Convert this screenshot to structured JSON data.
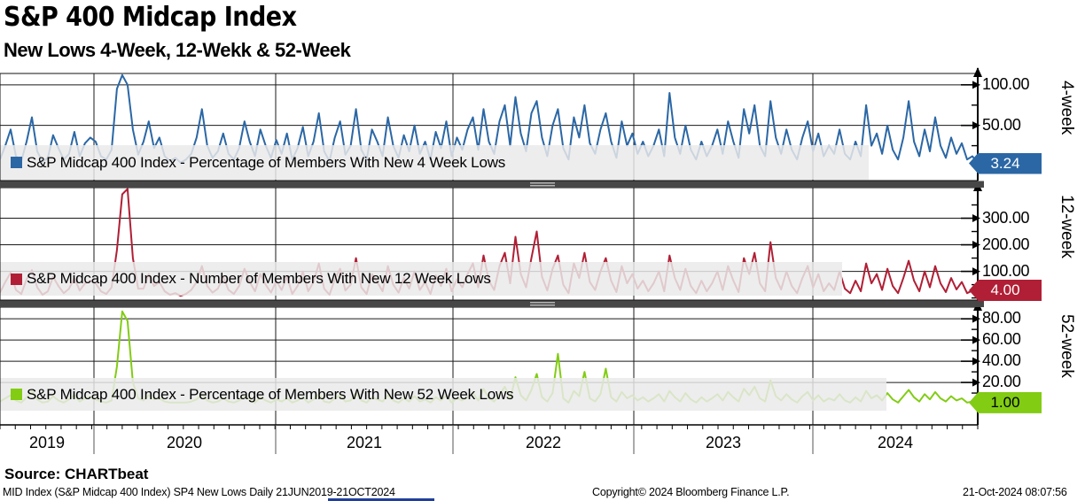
{
  "header": {
    "title": "S&P 400 Midcap Index",
    "subtitle": "New Lows 4-Week, 12-Wekk & 52-Week"
  },
  "footer": {
    "source": "Source: CHARTbeat",
    "description": "MID Index (S&P Midcap 400 Index) SP4 New Lows  Daily 21JUN2019-21OCT2024",
    "copyright": "Copyright© 2024 Bloomberg Finance L.P.",
    "timestamp": "21-Oct-2024 08:07:56"
  },
  "chart_data": {
    "type": "line",
    "title": "S&P 400 Midcap Index - New Lows 4-Week, 12-Week & 52-Week",
    "x_range": [
      "21JUN2019",
      "21OCT2024"
    ],
    "year_labels": [
      "2019",
      "2020",
      "2021",
      "2022",
      "2023",
      "2024"
    ],
    "grid": true,
    "legend_position": "inside-left",
    "panels": [
      {
        "id": "4-week",
        "axis_label": "4-week",
        "legend": "S&P Midcap 400 Index - Percentage of Members With New 4 Week Lows",
        "color": "#2b67a5",
        "badge_color": "#2b67a5",
        "badge_text_color": "#ffffff",
        "last_value": "3.24",
        "ylim": [
          -18,
          114
        ],
        "ticks": [
          50,
          100
        ],
        "minor_ticks": [
          0,
          25,
          75
        ],
        "values": [
          8,
          25,
          45,
          12,
          6,
          30,
          60,
          18,
          5,
          10,
          38,
          22,
          8,
          15,
          42,
          12,
          28,
          35,
          30,
          12,
          8,
          20,
          95,
          112,
          100,
          45,
          14,
          30,
          55,
          22,
          35,
          12,
          6,
          10,
          4,
          8,
          15,
          35,
          70,
          25,
          10,
          18,
          40,
          15,
          8,
          22,
          55,
          30,
          12,
          45,
          25,
          10,
          32,
          15,
          40,
          8,
          22,
          48,
          12,
          30,
          65,
          18,
          6,
          35,
          55,
          14,
          25,
          70,
          20,
          8,
          45,
          30,
          12,
          60,
          25,
          10,
          38,
          18,
          50,
          15,
          30,
          8,
          42,
          22,
          55,
          12,
          35,
          20,
          45,
          60,
          20,
          70,
          30,
          15,
          55,
          75,
          25,
          85,
          40,
          18,
          65,
          80,
          35,
          12,
          50,
          70,
          22,
          8,
          60,
          35,
          75,
          28,
          15,
          45,
          65,
          30,
          10,
          55,
          25,
          40,
          15,
          30,
          12,
          25,
          45,
          12,
          90,
          35,
          15,
          50,
          20,
          8,
          30,
          12,
          25,
          45,
          15,
          55,
          30,
          10,
          70,
          40,
          75,
          25,
          12,
          80,
          35,
          15,
          45,
          20,
          8,
          35,
          55,
          18,
          40,
          12,
          25,
          15,
          45,
          15,
          8,
          30,
          12,
          75,
          25,
          40,
          15,
          50,
          20,
          8,
          35,
          80,
          30,
          12,
          45,
          18,
          60,
          25,
          10,
          35,
          15,
          28,
          8,
          12,
          3.24
        ]
      },
      {
        "id": "12-week",
        "axis_label": "12-week",
        "legend": "S&P Midcap 400 Index - Number of Members With New 12 Week Lows",
        "color": "#b01f35",
        "badge_color": "#b01f35",
        "badge_text_color": "#ffffff",
        "last_value": "4.00",
        "ylim": [
          -8,
          415
        ],
        "ticks": [
          100,
          200,
          300
        ],
        "minor_ticks": [
          0,
          50,
          150,
          250,
          350
        ],
        "values": [
          20,
          60,
          95,
          30,
          15,
          70,
          105,
          40,
          12,
          25,
          80,
          45,
          18,
          35,
          75,
          28,
          55,
          65,
          55,
          25,
          15,
          40,
          180,
          390,
          410,
          150,
          35,
          35,
          90,
          45,
          60,
          25,
          12,
          18,
          8,
          15,
          30,
          60,
          120,
          45,
          20,
          35,
          80,
          30,
          15,
          45,
          110,
          60,
          25,
          90,
          50,
          20,
          65,
          30,
          80,
          15,
          45,
          100,
          25,
          60,
          130,
          35,
          12,
          70,
          110,
          28,
          50,
          150,
          40,
          15,
          90,
          60,
          25,
          120,
          50,
          20,
          75,
          35,
          100,
          30,
          60,
          15,
          85,
          45,
          110,
          25,
          70,
          40,
          90,
          130,
          40,
          160,
          65,
          30,
          120,
          170,
          55,
          230,
          90,
          40,
          150,
          250,
          80,
          28,
          110,
          160,
          50,
          18,
          130,
          75,
          170,
          60,
          30,
          100,
          150,
          65,
          22,
          120,
          55,
          90,
          35,
          65,
          25,
          55,
          100,
          25,
          160,
          75,
          30,
          110,
          45,
          18,
          65,
          25,
          55,
          100,
          30,
          120,
          65,
          22,
          150,
          90,
          170,
          55,
          25,
          210,
          75,
          32,
          100,
          45,
          18,
          75,
          120,
          40,
          90,
          25,
          55,
          30,
          100,
          35,
          18,
          65,
          25,
          130,
          55,
          90,
          30,
          110,
          45,
          18,
          75,
          140,
          65,
          25,
          100,
          40,
          120,
          55,
          22,
          75,
          32,
          60,
          18,
          28,
          4
        ]
      },
      {
        "id": "52-week",
        "axis_label": "52-week",
        "legend": "S&P Midcap 400 Index - Percentage of Members With New 52 Week Lows",
        "color": "#82cc14",
        "badge_color": "#82cc14",
        "badge_text_color": "#000000",
        "last_value": "1.00",
        "ylim": [
          -20,
          91
        ],
        "ticks": [
          20,
          40,
          60,
          80
        ],
        "minor_ticks": [
          0,
          10,
          30,
          50,
          70,
          90
        ],
        "values": [
          2,
          5,
          8,
          3,
          1,
          6,
          12,
          4,
          1,
          2,
          7,
          3,
          1,
          4,
          8,
          2,
          5,
          6,
          4,
          2,
          1,
          3,
          35,
          87,
          78,
          20,
          5,
          3,
          8,
          4,
          5,
          2,
          1,
          1,
          1,
          1,
          2,
          4,
          9,
          3,
          1,
          2,
          5,
          2,
          1,
          3,
          7,
          4,
          1,
          6,
          3,
          1,
          4,
          2,
          5,
          1,
          3,
          6,
          1,
          4,
          9,
          2,
          1,
          5,
          8,
          2,
          3,
          10,
          3,
          1,
          6,
          4,
          2,
          8,
          3,
          1,
          5,
          2,
          7,
          2,
          4,
          1,
          6,
          3,
          8,
          1,
          5,
          3,
          6,
          10,
          3,
          14,
          5,
          2,
          9,
          16,
          4,
          25,
          8,
          3,
          13,
          28,
          6,
          2,
          10,
          47,
          5,
          1,
          12,
          7,
          30,
          5,
          2,
          9,
          33,
          6,
          2,
          11,
          5,
          8,
          3,
          6,
          2,
          5,
          9,
          2,
          12,
          6,
          2,
          10,
          4,
          1,
          6,
          2,
          5,
          9,
          3,
          11,
          6,
          2,
          14,
          8,
          16,
          5,
          2,
          22,
          7,
          3,
          9,
          4,
          1,
          7,
          11,
          3,
          8,
          2,
          5,
          3,
          9,
          3,
          1,
          6,
          2,
          12,
          5,
          8,
          3,
          10,
          4,
          1,
          7,
          13,
          6,
          2,
          9,
          4,
          11,
          5,
          2,
          7,
          3,
          5,
          1,
          2,
          1
        ]
      }
    ]
  }
}
